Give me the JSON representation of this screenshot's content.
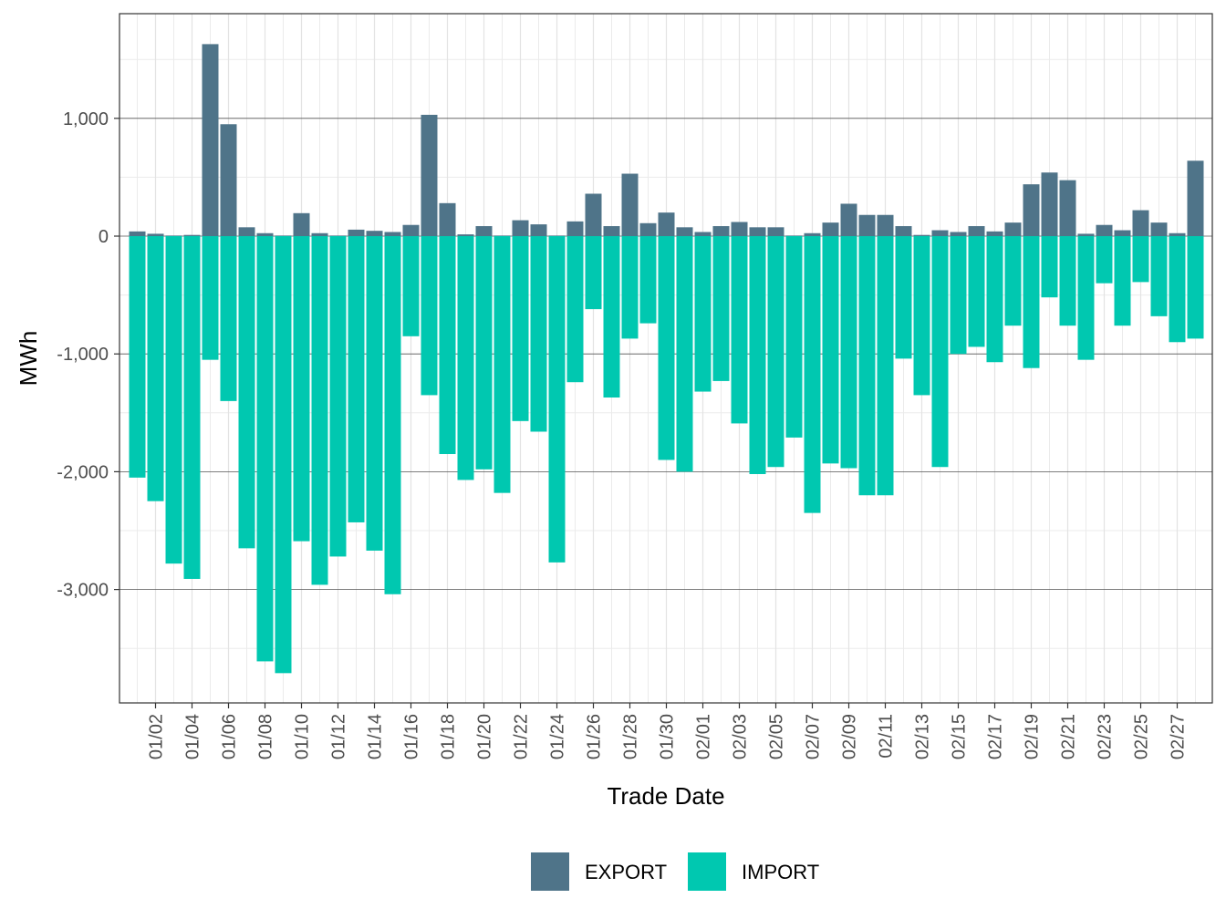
{
  "chart_data": {
    "type": "bar",
    "xlabel": "Trade Date",
    "ylabel": "MWh",
    "ylim": [
      -4000,
      1850
    ],
    "y_ticks": [
      -3000,
      -2000,
      -1000,
      0,
      1000
    ],
    "y_tick_labels": [
      "-3,000",
      "-2,000",
      "-1,000",
      "0",
      "1,000"
    ],
    "x_tick_labels": [
      "01/02",
      "01/04",
      "01/06",
      "01/08",
      "01/10",
      "01/12",
      "01/14",
      "01/16",
      "01/18",
      "01/20",
      "01/22",
      "01/24",
      "01/26",
      "01/28",
      "01/30",
      "02/01",
      "02/03",
      "02/05",
      "02/07",
      "02/09",
      "02/11",
      "02/13",
      "02/15",
      "02/17",
      "02/19",
      "02/21",
      "02/23",
      "02/25",
      "02/27"
    ],
    "grid": true,
    "legend_position": "bottom",
    "categories": [
      "01/01",
      "01/02",
      "01/03",
      "01/04",
      "01/05",
      "01/06",
      "01/07",
      "01/08",
      "01/09",
      "01/10",
      "01/11",
      "01/12",
      "01/13",
      "01/14",
      "01/15",
      "01/16",
      "01/17",
      "01/18",
      "01/19",
      "01/20",
      "01/21",
      "01/22",
      "01/23",
      "01/24",
      "01/25",
      "01/26",
      "01/27",
      "01/28",
      "01/29",
      "01/30",
      "01/31",
      "02/01",
      "02/02",
      "02/03",
      "02/04",
      "02/05",
      "02/06",
      "02/07",
      "02/08",
      "02/09",
      "02/10",
      "02/11",
      "02/12",
      "02/13",
      "02/14",
      "02/15",
      "02/16",
      "02/17",
      "02/18",
      "02/19",
      "02/20",
      "02/21",
      "02/22",
      "02/23",
      "02/24",
      "02/25",
      "02/26",
      "02/27",
      "02/28"
    ],
    "series": [
      {
        "name": "EXPORT",
        "color": "#4f7489",
        "values": [
          40,
          20,
          5,
          10,
          1630,
          950,
          75,
          25,
          5,
          195,
          25,
          5,
          55,
          45,
          35,
          95,
          1030,
          280,
          15,
          85,
          5,
          135,
          100,
          5,
          125,
          360,
          85,
          530,
          110,
          200,
          75,
          35,
          85,
          120,
          75,
          75,
          5,
          25,
          115,
          275,
          180,
          180,
          85,
          10,
          50,
          35,
          85,
          40,
          115,
          440,
          540,
          475,
          20,
          95,
          50,
          220,
          115,
          25,
          640
        ]
      },
      {
        "name": "IMPORT",
        "color": "#00c8b0",
        "values": [
          -2050,
          -2250,
          -2780,
          -2910,
          -1050,
          -1400,
          -2650,
          -3610,
          -3710,
          -2590,
          -2960,
          -2720,
          -2430,
          -2670,
          -3040,
          -850,
          -1350,
          -1850,
          -2070,
          -1980,
          -2180,
          -1570,
          -1660,
          -2770,
          -1240,
          -620,
          -1370,
          -870,
          -740,
          -1900,
          -2000,
          -1320,
          -1230,
          -1590,
          -2020,
          -1960,
          -1710,
          -2350,
          -1930,
          -1970,
          -2200,
          -2200,
          -1040,
          -1350,
          -1960,
          -1000,
          -940,
          -1070,
          -760,
          -1120,
          -520,
          -760,
          -1050,
          -400,
          -760,
          -390,
          -680,
          -900,
          -870
        ]
      }
    ]
  }
}
